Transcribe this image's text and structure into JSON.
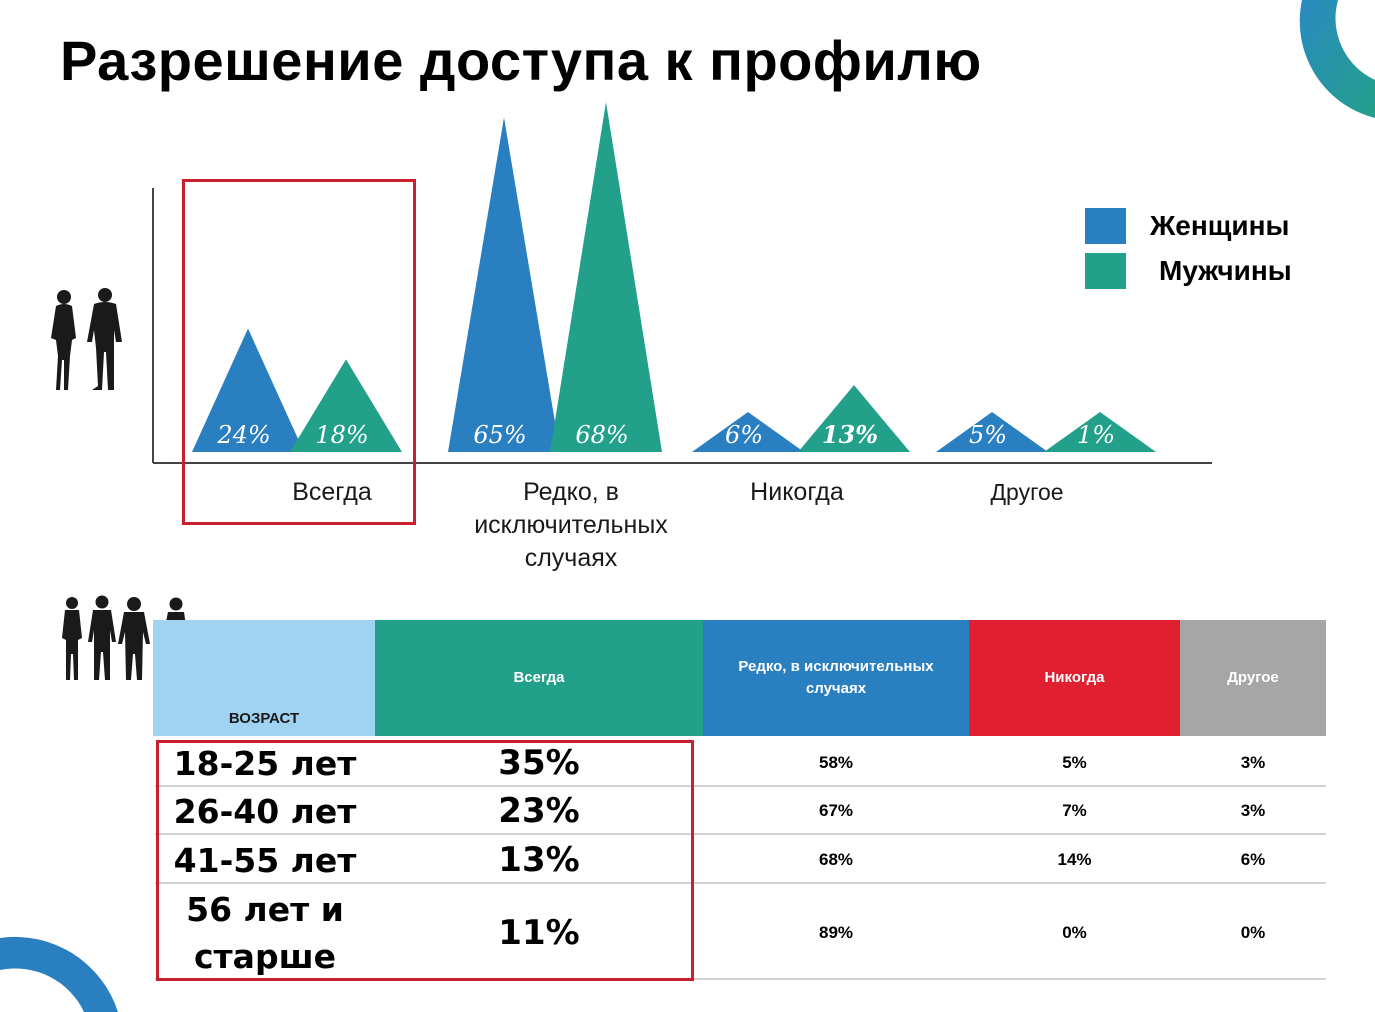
{
  "title": "Разрешение доступа к профилю",
  "colors": {
    "women": "#2a7fc0",
    "men": "#23a08a",
    "highlight": "#c8202f",
    "age_header": "#9fd3f1",
    "always_header": "#23a08a",
    "rarely_header": "#2a7fc0",
    "never_header": "#e01f30",
    "other_header": "#a6a6a6"
  },
  "legend": {
    "women": "Женщины",
    "men": "Мужчины"
  },
  "chart_data": {
    "type": "bar",
    "categories": [
      "Всегда",
      "Редко, в исключительных случаях",
      "Никогда",
      "Другое"
    ],
    "category_labels": [
      [
        "Всегда"
      ],
      [
        "Редко, в",
        "исключительных",
        "случаях"
      ],
      [
        "Никогда"
      ],
      [
        "Другое"
      ]
    ],
    "series": [
      {
        "name": "Женщины",
        "values": [
          24,
          65,
          6,
          5
        ],
        "labels": [
          "24%",
          "65%",
          "6%",
          "5%"
        ]
      },
      {
        "name": "Мужчины",
        "values": [
          18,
          68,
          13,
          1
        ],
        "labels": [
          "18%",
          "68%",
          "13%",
          "1%"
        ]
      }
    ],
    "ylim": [
      0,
      70
    ],
    "grid": false,
    "legend_position": "top-right",
    "highlighted_category": "Всегда"
  },
  "table": {
    "headers": {
      "age": "ВОЗРАСТ",
      "always": "Всегда",
      "rarely": "Редко, в исключительных случаях",
      "never": "Никогда",
      "other": "Другое"
    },
    "rows": [
      {
        "age": "18-25 лет",
        "always": "35%",
        "rarely": "58%",
        "never": "5%",
        "other": "3%"
      },
      {
        "age": "26-40 лет",
        "always": "23%",
        "rarely": "67%",
        "never": "7%",
        "other": "3%"
      },
      {
        "age": "41-55 лет",
        "always": "13%",
        "rarely": "68%",
        "never": "14%",
        "other": "6%"
      },
      {
        "age": "56 лет и старше",
        "always": "11%",
        "rarely": "89%",
        "never": "0%",
        "other": "0%"
      }
    ]
  }
}
